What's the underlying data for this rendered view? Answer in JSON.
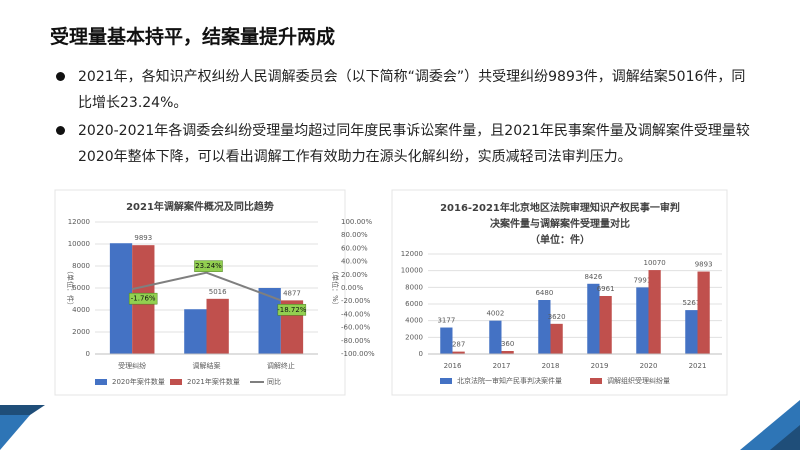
{
  "header": {
    "title": "受理量基本持平，结案量提升两成"
  },
  "bullets": [
    "2021年，各知识产权纠纷人民调解委员会（以下简称“调委会”）共受理纠纷9893件，调解结案5016件，同比增长23.24%。",
    "2020-2021年各调委会纠纷受理量均超过同年度民事诉讼案件量，且2021年民事案件量及调解案件受理量较2020年整体下降，可以看出调解工作有效助力在源头化解纠纷，实质减轻司法审判压力。"
  ],
  "chart_data": [
    {
      "type": "bar",
      "title": [
        "2021年调解案件概况及同比趋势"
      ],
      "ylabel": "（单位：件）",
      "y2label": "（单位：%）",
      "categories": [
        "受理纠纷",
        "调解结案",
        "调解终止"
      ],
      "series": [
        {
          "name": "2020年案件数量",
          "color": "#4472c4",
          "values": [
            10070,
            4070,
            6000
          ],
          "show_labels": false
        },
        {
          "name": "2021年案件数量",
          "color": "#c0504d",
          "values": [
            9893,
            5016,
            4877
          ],
          "show_labels": true
        },
        {
          "name": "同比",
          "color": "#7f7f7f",
          "type": "line",
          "axis": "y2",
          "values": [
            -1.76,
            23.24,
            -18.72
          ],
          "value_labels": [
            "-1.76%",
            "23.24%",
            "-18.72%"
          ]
        }
      ],
      "ylim": [
        0,
        12000
      ],
      "yticks": [
        0,
        2000,
        4000,
        6000,
        8000,
        10000,
        12000
      ],
      "y2lim": [
        -100,
        100
      ],
      "y2ticks": [
        {
          "value": -100,
          "label": "-100.00%"
        },
        {
          "value": -80,
          "label": "-80.00%"
        },
        {
          "value": -60,
          "label": "-60.00%"
        },
        {
          "value": -40,
          "label": "-40.00%"
        },
        {
          "value": -20,
          "label": "-20.00%"
        },
        {
          "value": 0,
          "label": "0.00%"
        },
        {
          "value": 20,
          "label": "20.00%"
        },
        {
          "value": 40,
          "label": "40.00%"
        },
        {
          "value": 60,
          "label": "60.00%"
        },
        {
          "value": 80,
          "label": "80.00%"
        },
        {
          "value": 100,
          "label": "100.00%"
        }
      ],
      "grid": true
    },
    {
      "type": "bar",
      "title": [
        "2016-2021年北京地区法院审理知识产权民事一审判",
        "决案件量与调解案件受理量对比"
      ],
      "subtitle": "（单位：件）",
      "categories": [
        "2016",
        "2017",
        "2018",
        "2019",
        "2020",
        "2021"
      ],
      "series": [
        {
          "name": "北京法院一审知产民事判决案件量",
          "color": "#4472c4",
          "values": [
            3177,
            4002,
            6480,
            8426,
            7991,
            5267
          ],
          "show_labels": true
        },
        {
          "name": "调解组织受理纠纷量",
          "color": "#c0504d",
          "values": [
            287,
            360,
            3620,
            6961,
            10070,
            9893
          ],
          "show_labels": true
        }
      ],
      "ylim": [
        0,
        12000
      ],
      "yticks": [
        0,
        2000,
        4000,
        6000,
        8000,
        10000,
        12000
      ],
      "grid": true
    }
  ]
}
